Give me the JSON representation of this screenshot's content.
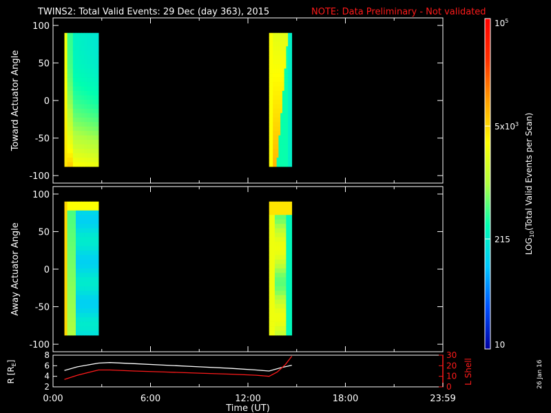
{
  "header": {
    "title": "TWINS2: Total Valid Events: 29 Dec (day 363), 2015",
    "note": "NOTE: Data Preliminary - Not validated"
  },
  "stamp": "26 Jan 16",
  "chart_data": [
    {
      "type": "heatmap",
      "ylabel": "Toward Actuator Angle",
      "ylim": [
        -110,
        110
      ],
      "y_ticks": [
        "-100",
        "-50",
        "0",
        "50",
        "100"
      ],
      "blocks": [
        {
          "t_start": 0.7,
          "t_end": 2.8,
          "angle_min": -88,
          "angle_max": 90
        },
        {
          "t_start": 13.3,
          "t_end": 14.7,
          "angle_min": -88,
          "angle_max": 90
        }
      ]
    },
    {
      "type": "heatmap",
      "ylabel": "Away Actuator Angle",
      "ylim": [
        -110,
        110
      ],
      "y_ticks": [
        "-100",
        "-50",
        "0",
        "50",
        "100"
      ],
      "blocks": [
        {
          "t_start": 0.7,
          "t_end": 2.8,
          "angle_min": -88,
          "angle_max": 90
        },
        {
          "t_start": 13.3,
          "t_end": 14.7,
          "angle_min": -88,
          "angle_max": 90
        }
      ]
    },
    {
      "type": "line",
      "xlabel": "Time (UT)",
      "xlim": [
        0,
        24
      ],
      "x_ticks": [
        "0:00",
        "6:00",
        "12:00",
        "18:00",
        "23:59"
      ],
      "left_axis": {
        "label": "R [R",
        "label_sub": "E",
        "label_end": "]",
        "ylim": [
          2,
          8
        ],
        "ticks": [
          "2",
          "4",
          "6",
          "8"
        ],
        "color": "#ffffff"
      },
      "right_axis": {
        "label": "L Shell",
        "ylim": [
          0,
          30
        ],
        "ticks": [
          "0",
          "10",
          "20",
          "30"
        ],
        "color": "#ff1a1a"
      },
      "series": [
        {
          "axis": "left",
          "color": "#ffffff",
          "x": [
            0.7,
            1.5,
            2.8,
            3.5,
            5,
            7,
            9,
            11,
            12.5,
            13.3,
            14,
            14.7
          ],
          "y": [
            5.1,
            5.8,
            6.5,
            6.6,
            6.4,
            6.1,
            5.8,
            5.5,
            5.2,
            5.0,
            5.6,
            6.1
          ]
        },
        {
          "axis": "right",
          "color": "#ff1a1a",
          "x": [
            0.7,
            1.5,
            2.8,
            3.5,
            5,
            7,
            9,
            11,
            12.5,
            13.3,
            13.8,
            14.3,
            14.7
          ],
          "y": [
            7,
            11,
            16,
            16,
            15,
            14,
            13,
            12,
            11,
            10,
            14,
            21,
            29
          ]
        }
      ]
    }
  ],
  "colorbar": {
    "label_main": "LOG",
    "label_sub": "10",
    "label_rest": "(Total Valid Events per Scan)",
    "ticks": [
      {
        "base": "10",
        "exp": "",
        "value": 10
      },
      {
        "base": "215",
        "exp": "",
        "value": 215
      },
      {
        "base": "5x10",
        "exp": "3",
        "value": 5000
      },
      {
        "base": "10",
        "exp": "5",
        "value": 100000
      }
    ],
    "range": [
      10,
      100000
    ],
    "scale": "log",
    "colors": [
      "#0000a0",
      "#0050ff",
      "#00c8ff",
      "#00ffb0",
      "#b0ff40",
      "#ffff00",
      "#ffa000",
      "#ff3000",
      "#ff0000"
    ]
  }
}
